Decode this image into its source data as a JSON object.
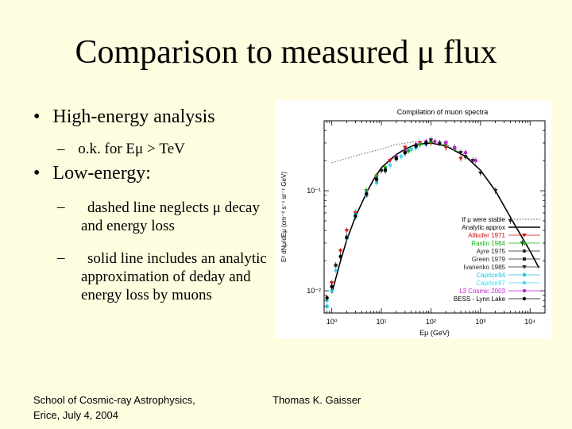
{
  "slide": {
    "title": "Comparison to measured μ flux",
    "bullets": [
      {
        "text": "High-energy analysis",
        "sub": [
          "o.k. for Eμ > TeV"
        ]
      },
      {
        "text": "Low-energy:",
        "sub": [
          "dashed line neglects μ decay and energy loss",
          "solid line includes an analytic approximation of deday and energy loss by muons"
        ]
      }
    ],
    "footer_left": [
      "School of Cosmic-ray Astrophysics,",
      "Erice, July 4, 2004"
    ],
    "footer_center": "Thomas K. Gaisser"
  },
  "chart_data": {
    "type": "scatter",
    "title": "Compilation of muon spectra",
    "xlabel": "Eμ (GeV)",
    "ylabel": "E² dNμ/dEμ (cm⁻² s⁻¹ sr⁻¹ GeV)",
    "x_scale": "log",
    "y_scale": "log",
    "xlim": [
      0.7,
      20000
    ],
    "ylim": [
      0.006,
      0.5
    ],
    "x_ticks": [
      {
        "v": 1,
        "label": "10⁰"
      },
      {
        "v": 10,
        "label": "10¹"
      },
      {
        "v": 100,
        "label": "10²"
      },
      {
        "v": 1000,
        "label": "10³"
      },
      {
        "v": 10000,
        "label": "10⁴"
      }
    ],
    "y_ticks": [
      {
        "v": 0.01,
        "label": "10⁻²"
      },
      {
        "v": 0.1,
        "label": "10⁻¹"
      }
    ],
    "legend_position": "right",
    "curves": [
      {
        "name": "If μ were stable",
        "style": "dotted",
        "color": "#555555",
        "x": [
          1,
          2,
          5,
          10,
          20,
          50,
          100,
          200,
          500,
          1000,
          2000,
          5000,
          10000
        ],
        "y": [
          0.19,
          0.21,
          0.24,
          0.26,
          0.29,
          0.31,
          0.31,
          0.29,
          0.23,
          0.16,
          0.1,
          0.045,
          0.025
        ]
      },
      {
        "name": "Analytic approx",
        "style": "solid",
        "color": "#000000",
        "x": [
          1,
          1.5,
          2,
          3,
          5,
          7,
          10,
          20,
          30,
          50,
          100,
          200,
          500,
          1000,
          2000,
          5000,
          10000,
          15000
        ],
        "y": [
          0.0095,
          0.02,
          0.032,
          0.055,
          0.095,
          0.13,
          0.17,
          0.23,
          0.26,
          0.29,
          0.3,
          0.28,
          0.22,
          0.16,
          0.1,
          0.045,
          0.025,
          0.017
        ]
      }
    ],
    "series": [
      {
        "name": "Allkofer 1971",
        "color": "#d01010",
        "marker": "tri-down",
        "x": [
          1,
          1.5,
          2,
          3,
          5,
          8,
          15,
          30,
          60,
          100,
          200,
          400
        ],
        "y": [
          0.012,
          0.025,
          0.04,
          0.06,
          0.1,
          0.14,
          0.2,
          0.27,
          0.3,
          0.3,
          0.27,
          0.21
        ]
      },
      {
        "name": "Rastin 1984",
        "color": "#10b010",
        "marker": "circle",
        "x": [
          5,
          8,
          12,
          20,
          35,
          60,
          100,
          200,
          300,
          500
        ],
        "y": [
          0.1,
          0.14,
          0.17,
          0.21,
          0.25,
          0.29,
          0.31,
          0.29,
          0.26,
          0.22
        ]
      },
      {
        "name": "Ayre 1975",
        "color": "#222222",
        "marker": "circle",
        "x": [
          10,
          20,
          40,
          80,
          150,
          300,
          500
        ],
        "y": [
          0.16,
          0.21,
          0.26,
          0.3,
          0.3,
          0.27,
          0.22
        ]
      },
      {
        "name": "Green 1979",
        "color": "#222222",
        "marker": "square",
        "x": [
          1.2,
          2,
          3,
          5,
          8,
          12,
          20,
          30,
          50,
          80
        ],
        "y": [
          0.018,
          0.034,
          0.055,
          0.09,
          0.13,
          0.16,
          0.21,
          0.24,
          0.28,
          0.3
        ]
      },
      {
        "name": "Ivanenko 1985",
        "color": "#222222",
        "marker": "tri-down",
        "x": [
          100,
          200,
          400,
          700,
          1000,
          2000,
          4000,
          7000
        ],
        "y": [
          0.32,
          0.3,
          0.24,
          0.2,
          0.15,
          0.1,
          0.05,
          0.03
        ]
      },
      {
        "name": "Caprice94",
        "color": "#20c0e0",
        "marker": "circle",
        "x": [
          0.8,
          1,
          1.5,
          2,
          3,
          5,
          8,
          12,
          20,
          30,
          50,
          80
        ],
        "y": [
          0.007,
          0.01,
          0.022,
          0.035,
          0.058,
          0.095,
          0.13,
          0.16,
          0.21,
          0.24,
          0.27,
          0.29
        ]
      },
      {
        "name": "Caprice97",
        "color": "#40d8f0",
        "marker": "circle",
        "x": [
          0.8,
          1.2,
          2,
          3,
          5,
          8,
          15,
          25,
          40
        ],
        "y": [
          0.008,
          0.016,
          0.033,
          0.055,
          0.09,
          0.12,
          0.18,
          0.22,
          0.26
        ]
      },
      {
        "name": "L3 Cosmic 2003",
        "color": "#c020d0",
        "marker": "circle",
        "x": [
          20,
          30,
          50,
          80,
          120,
          200,
          300,
          500,
          800
        ],
        "y": [
          0.22,
          0.25,
          0.29,
          0.31,
          0.31,
          0.3,
          0.27,
          0.24,
          0.2
        ]
      },
      {
        "name": "BESS - Lynn Lake",
        "color": "#000000",
        "marker": "circle",
        "x": [
          0.8,
          1,
          1.5,
          2,
          3,
          5,
          8,
          12,
          20,
          30,
          50,
          80
        ],
        "y": [
          0.0085,
          0.011,
          0.022,
          0.034,
          0.056,
          0.093,
          0.13,
          0.16,
          0.21,
          0.24,
          0.28,
          0.3
        ]
      }
    ]
  },
  "colors": {
    "background": "#fffde0",
    "plot_bg": "#ffffff"
  }
}
